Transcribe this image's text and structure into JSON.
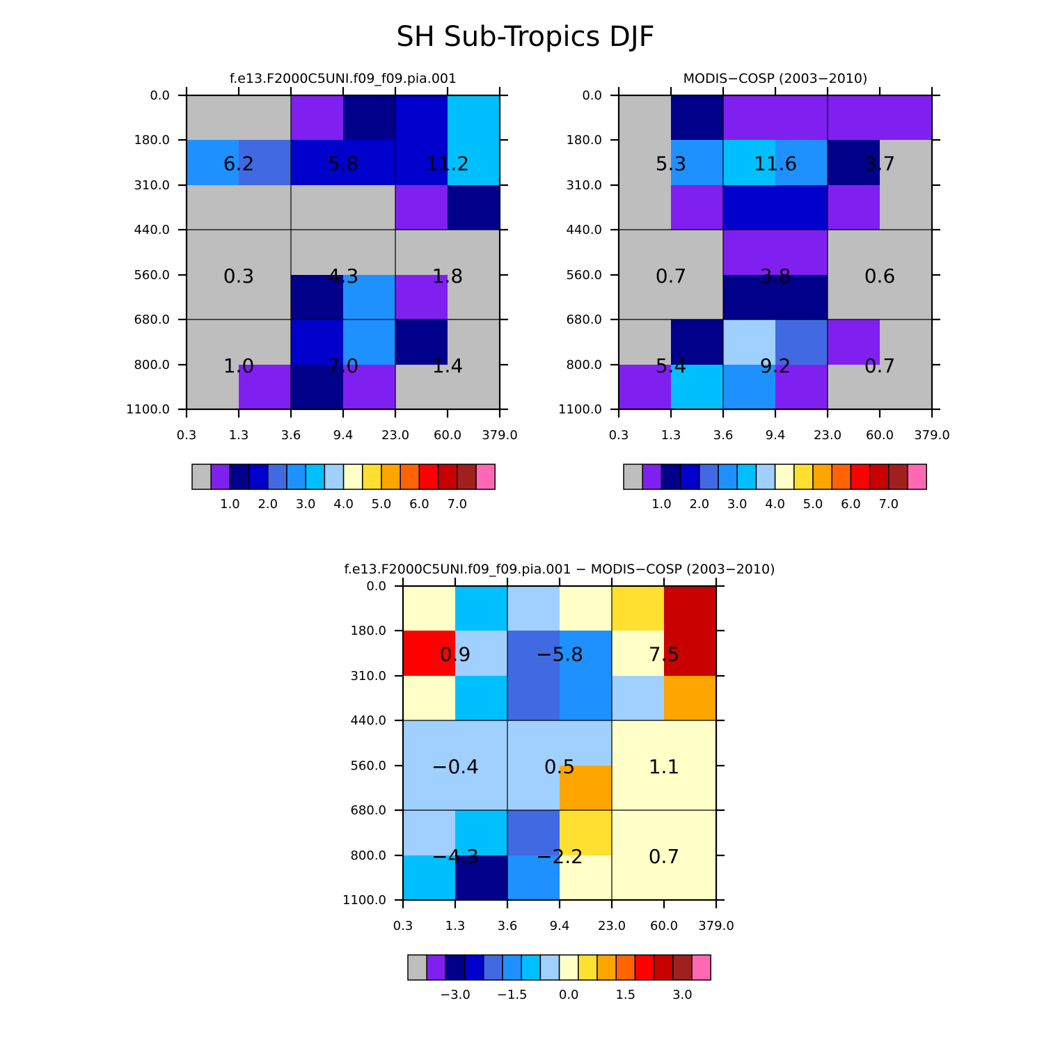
{
  "title": "SH Sub-Tropics DJF",
  "palette": [
    "#bebebe",
    "#8020f0",
    "#00008b",
    "#0000cd",
    "#4169e1",
    "#1e90ff",
    "#00bfff",
    "#a0d0ff",
    "#ffffc8",
    "#ffe030",
    "#ffa500",
    "#ff6400",
    "#ff0000",
    "#c80000",
    "#a02020",
    "#ff69b4"
  ],
  "chart_data": [
    {
      "type": "heatmap",
      "title": "f.e13.F2000C5UNI.f09_f09.pia.001",
      "x_ticks": [
        "0.3",
        "1.3",
        "3.6",
        "9.4",
        "23.0",
        "60.0",
        "379.0"
      ],
      "y_ticks": [
        "0.0",
        "180.0",
        "310.0",
        "440.0",
        "560.0",
        "680.0",
        "800.0",
        "1100.0"
      ],
      "cells": [
        [
          0,
          0,
          1,
          2,
          3,
          6
        ],
        [
          5,
          4,
          3,
          3,
          3,
          6
        ],
        [
          0,
          0,
          0,
          0,
          1,
          2
        ],
        [
          0,
          0,
          0,
          0,
          0,
          0
        ],
        [
          0,
          0,
          2,
          5,
          1,
          0
        ],
        [
          0,
          0,
          3,
          5,
          2,
          0
        ],
        [
          0,
          1,
          2,
          1,
          0,
          0
        ]
      ],
      "annotations": [
        {
          "row": 1,
          "col": 0.5,
          "text": "6.2"
        },
        {
          "row": 1,
          "col": 2.5,
          "text": "5.8"
        },
        {
          "row": 1,
          "col": 4.5,
          "text": "11.2"
        },
        {
          "row": 3.5,
          "col": 0.5,
          "text": "0.3"
        },
        {
          "row": 3.5,
          "col": 2.5,
          "text": "4.3"
        },
        {
          "row": 3.5,
          "col": 4.5,
          "text": "1.8"
        },
        {
          "row": 5.5,
          "col": 0.5,
          "text": "1.0"
        },
        {
          "row": 5.5,
          "col": 2.5,
          "text": "7.0"
        },
        {
          "row": 5.5,
          "col": 4.5,
          "text": "1.4"
        }
      ],
      "colorbar_labels": [
        "1.0",
        "2.0",
        "3.0",
        "4.0",
        "5.0",
        "6.0",
        "7.0"
      ]
    },
    {
      "type": "heatmap",
      "title": "MODIS-COSP (2003-2010)",
      "x_ticks": [
        "0.3",
        "1.3",
        "3.6",
        "9.4",
        "23.0",
        "60.0",
        "379.0"
      ],
      "y_ticks": [
        "0.0",
        "180.0",
        "310.0",
        "440.0",
        "560.0",
        "680.0",
        "800.0",
        "1100.0"
      ],
      "cells": [
        [
          0,
          2,
          1,
          1,
          1,
          1
        ],
        [
          0,
          5,
          6,
          5,
          2,
          0
        ],
        [
          0,
          1,
          3,
          3,
          1,
          0
        ],
        [
          0,
          0,
          1,
          1,
          0,
          0
        ],
        [
          0,
          0,
          2,
          2,
          0,
          0
        ],
        [
          0,
          2,
          7,
          4,
          1,
          0
        ],
        [
          1,
          6,
          5,
          1,
          0,
          0
        ]
      ],
      "annotations": [
        {
          "row": 1,
          "col": 0.5,
          "text": "5.3"
        },
        {
          "row": 1,
          "col": 2.5,
          "text": "11.6"
        },
        {
          "row": 1,
          "col": 4.5,
          "text": "3.7"
        },
        {
          "row": 3.5,
          "col": 0.5,
          "text": "0.7"
        },
        {
          "row": 3.5,
          "col": 2.5,
          "text": "3.8"
        },
        {
          "row": 3.5,
          "col": 4.5,
          "text": "0.6"
        },
        {
          "row": 5.5,
          "col": 0.5,
          "text": "5.4"
        },
        {
          "row": 5.5,
          "col": 2.5,
          "text": "9.2"
        },
        {
          "row": 5.5,
          "col": 4.5,
          "text": "0.7"
        }
      ],
      "colorbar_labels": [
        "1.0",
        "2.0",
        "3.0",
        "4.0",
        "5.0",
        "6.0",
        "7.0"
      ]
    },
    {
      "type": "heatmap",
      "title": "f.e13.F2000C5UNI.f09_f09.pia.001 - MODIS-COSP (2003-2010)",
      "x_ticks": [
        "0.3",
        "1.3",
        "3.6",
        "9.4",
        "23.0",
        "60.0",
        "379.0"
      ],
      "y_ticks": [
        "0.0",
        "180.0",
        "310.0",
        "440.0",
        "560.0",
        "680.0",
        "800.0",
        "1100.0"
      ],
      "cells": [
        [
          8,
          6,
          7,
          8,
          9,
          13
        ],
        [
          12,
          7,
          4,
          5,
          8,
          13
        ],
        [
          8,
          6,
          4,
          5,
          7,
          10
        ],
        [
          7,
          7,
          7,
          7,
          8,
          8
        ],
        [
          7,
          7,
          7,
          10,
          8,
          8
        ],
        [
          7,
          6,
          4,
          9,
          8,
          8
        ],
        [
          6,
          2,
          5,
          8,
          8,
          8
        ]
      ],
      "annotations": [
        {
          "row": 1,
          "col": 0.5,
          "text": "0.9"
        },
        {
          "row": 1,
          "col": 2.5,
          "text": "-5.8"
        },
        {
          "row": 1,
          "col": 4.5,
          "text": "7.5"
        },
        {
          "row": 3.5,
          "col": 0.5,
          "text": "-0.4"
        },
        {
          "row": 3.5,
          "col": 2.5,
          "text": "0.5"
        },
        {
          "row": 3.5,
          "col": 4.5,
          "text": "1.1"
        },
        {
          "row": 5.5,
          "col": 0.5,
          "text": "-4.3"
        },
        {
          "row": 5.5,
          "col": 2.5,
          "text": "-2.2"
        },
        {
          "row": 5.5,
          "col": 4.5,
          "text": "0.7"
        }
      ],
      "colorbar_labels": [
        "-3.0",
        "-1.5",
        "0.0",
        "1.5",
        "3.0"
      ]
    }
  ]
}
